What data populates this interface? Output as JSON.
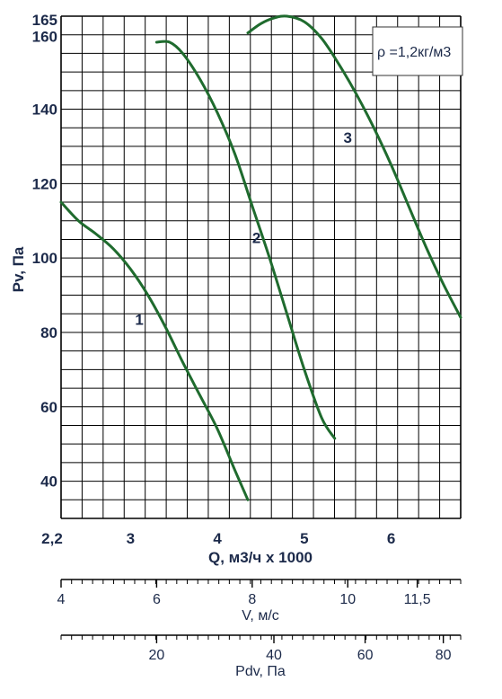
{
  "chart_data": {
    "type": "line",
    "xlabel": "Q, м3/ч х 1000",
    "ylabel": "Pv, Па",
    "xlim": [
      2.2,
      6.8
    ],
    "ylim": [
      30,
      165
    ],
    "x_ticks": [
      "2,2",
      "3",
      "4",
      "5",
      "6"
    ],
    "x_tick_values": [
      2.2,
      3,
      4,
      5,
      6
    ],
    "y_ticks": [
      "40",
      "60",
      "80",
      "100",
      "120",
      "140",
      "160",
      "165"
    ],
    "y_tick_values": [
      40,
      60,
      80,
      100,
      120,
      140,
      160,
      165
    ],
    "grid": true,
    "annotation": "ρ =1,2кг/м3",
    "series": [
      {
        "name": "1",
        "color": "#1f6b2e",
        "x": [
          2.2,
          2.4,
          2.6,
          2.8,
          3.0,
          3.2,
          3.4,
          3.6,
          3.8,
          4.0,
          4.2,
          4.35
        ],
        "y": [
          115,
          110,
          106.5,
          102.5,
          97,
          90,
          81.5,
          72,
          63,
          54,
          43,
          35
        ]
      },
      {
        "name": "2",
        "color": "#1f6b2e",
        "x": [
          3.3,
          3.45,
          3.6,
          3.8,
          4.0,
          4.2,
          4.4,
          4.6,
          4.8,
          5.0,
          5.2,
          5.35
        ],
        "y": [
          158,
          158,
          155,
          148,
          139,
          128,
          114,
          100,
          85,
          70,
          57,
          51.5
        ]
      },
      {
        "name": "3",
        "color": "#1f6b2e",
        "x": [
          4.35,
          4.5,
          4.65,
          4.8,
          5.0,
          5.2,
          5.4,
          5.6,
          5.8,
          6.0,
          6.2,
          6.4,
          6.6,
          6.8
        ],
        "y": [
          160.5,
          163,
          164.5,
          165,
          163.5,
          159,
          152,
          144,
          135,
          125,
          114,
          103,
          93,
          84
        ]
      }
    ],
    "label_positions": [
      {
        "text": "1",
        "x": 3.1,
        "y": 82
      },
      {
        "text": "2",
        "x": 4.45,
        "y": 104
      },
      {
        "text": "3",
        "x": 5.5,
        "y": 131
      }
    ],
    "secondary_axes": [
      {
        "label": "V, м/с",
        "ticks": [
          "4",
          "6",
          "8",
          "10",
          "11,5"
        ],
        "tick_values_q": [
          2.2,
          3.3,
          4.4,
          5.5,
          6.3
        ]
      },
      {
        "label": "Pdv, Па",
        "ticks": [
          "20",
          "40",
          "60",
          "80"
        ],
        "tick_values_q": [
          3.3,
          4.65,
          5.7,
          6.6
        ]
      }
    ]
  }
}
